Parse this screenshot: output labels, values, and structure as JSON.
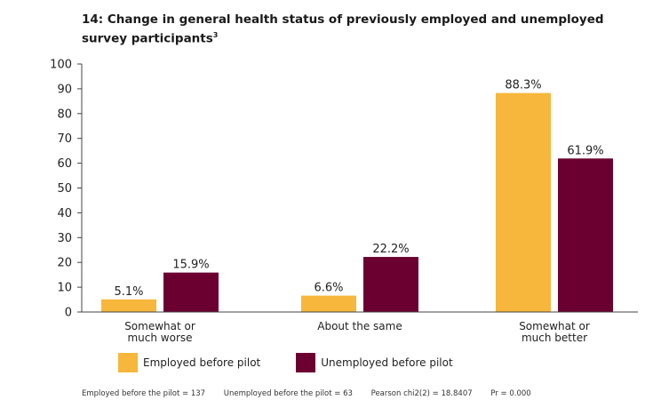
{
  "title": "14: Change in general health status of previously employed and unemployed survey participants",
  "title_superscript": "3",
  "chart_data": {
    "type": "bar",
    "categories": [
      [
        "Somewhat or",
        "much worse"
      ],
      [
        "About the same"
      ],
      [
        "Somewhat or",
        "much better"
      ]
    ],
    "series": [
      {
        "name": "Employed before pilot",
        "values": [
          5.1,
          6.6,
          88.3
        ],
        "labels": [
          "5.1%",
          "6.6%",
          "88.3%"
        ],
        "color": "#f6b73c"
      },
      {
        "name": "Unemployed before pilot",
        "values": [
          15.9,
          22.2,
          61.9
        ],
        "labels": [
          "15.9%",
          "22.2%",
          "61.9%"
        ],
        "color": "#6b0030"
      }
    ],
    "ylim": [
      0,
      100
    ],
    "yticks": [
      0,
      10,
      20,
      30,
      40,
      50,
      60,
      70,
      80,
      90,
      100
    ],
    "grid": false,
    "legend_position": "bottom"
  },
  "footer": {
    "employed_n": "Employed before the pilot = 137",
    "unemployed_n": "Unemployed before the pilot = 63",
    "chi2": "Pearson chi2(2) = 18.8407",
    "pr": "Pr = 0.000"
  }
}
